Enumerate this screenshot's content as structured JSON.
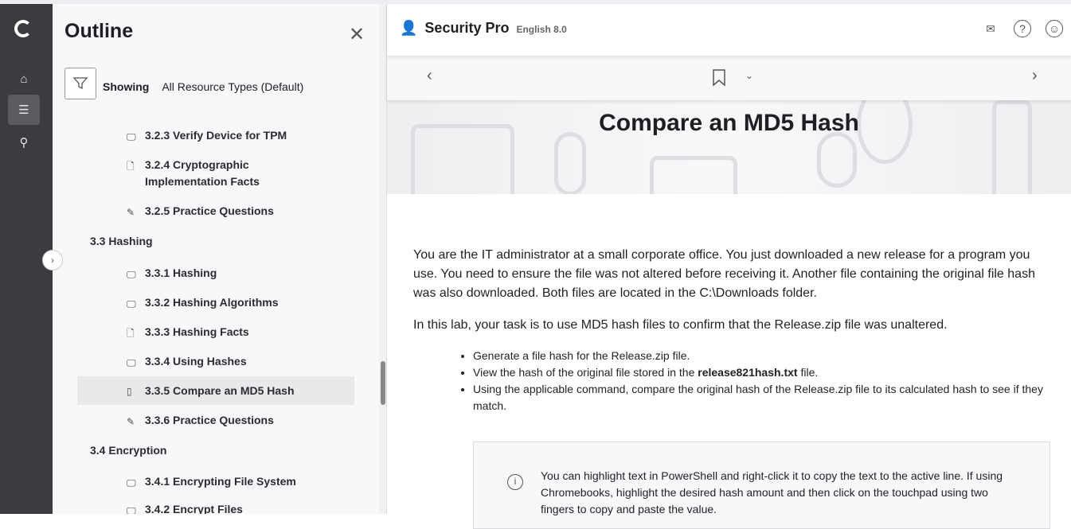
{
  "outline": {
    "title": "Outline",
    "filter_label": "Showing",
    "filter_value": "All Resource Types (Default)",
    "items": [
      {
        "label": "3.2.3 Verify Device for TPM",
        "icon": "monitor-icon"
      },
      {
        "label": "3.2.4 Cryptographic Implementation Facts",
        "icon": "document-icon"
      },
      {
        "label": "3.2.5 Practice Questions",
        "icon": "edit-icon"
      },
      {
        "label": "3.3 Hashing",
        "section": true
      },
      {
        "label": "3.3.1 Hashing",
        "icon": "monitor-icon"
      },
      {
        "label": "3.3.2 Hashing Algorithms",
        "icon": "monitor-icon"
      },
      {
        "label": "3.3.3 Hashing Facts",
        "icon": "document-icon"
      },
      {
        "label": "3.3.4 Using Hashes",
        "icon": "monitor-icon"
      },
      {
        "label": "3.3.5 Compare an MD5 Hash",
        "icon": "mouse-icon",
        "selected": true
      },
      {
        "label": "3.3.6 Practice Questions",
        "icon": "edit-icon"
      },
      {
        "label": "3.4 Encryption",
        "section": true
      },
      {
        "label": "3.4.1 Encrypting File System",
        "icon": "monitor-icon"
      },
      {
        "label": "3.4.2 Encrypt Files",
        "icon": "monitor-icon"
      }
    ]
  },
  "header": {
    "brand": "Security Pro",
    "version": "English 8.0"
  },
  "page": {
    "title": "Compare an MD5 Hash",
    "p1": "You are the IT administrator at a small corporate office. You just downloaded a new release for a program you use. You need to ensure the file was not altered before receiving it. Another file containing the original file hash was also downloaded. Both files are located in the C:\\Downloads folder.",
    "p2": "In this lab, your task is to use MD5 hash files to confirm that the Release.zip file was unaltered.",
    "bullets": [
      "Generate a file hash for the Release.zip file.",
      "View the hash of the original file stored in the ",
      "release821hash.txt",
      " file.",
      "Using the applicable command, compare the original hash of the Release.zip file to its calculated hash to see if they match."
    ],
    "note": "You can highlight text in PowerShell and right-click it to copy the text to the active line. If using Chromebooks, highlight the desired hash amount and then click on the touchpad using two fingers to copy and paste the value."
  }
}
